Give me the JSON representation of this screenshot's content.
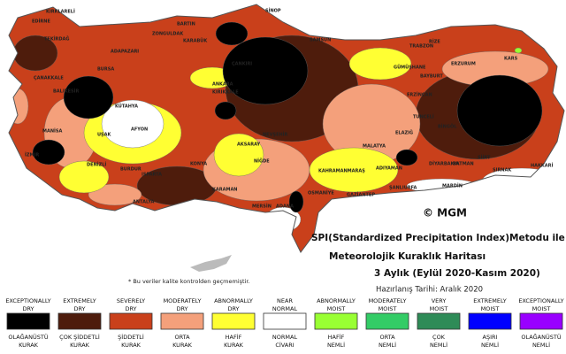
{
  "title": {
    "line1": "SPI(Standardized Precipitation Index)Metodu ile",
    "line2": "Meteorolojik Kuraklık Haritası",
    "line3": "3 Aylık (Eylül 2020-Kasım 2020)",
    "prepared": "Hazırlanış Tarihi: Aralık 2020"
  },
  "note": "* Bu veriler kalite kontrolden geçmemiştir.",
  "copyright": "© MGM",
  "cities": [
    "SİNOP",
    "BARTIN",
    "ZONGULDAK",
    "KARABÜK",
    "KIRKLARELİ",
    "EDİRNE",
    "TEKİRDAĞ",
    "ÇANAKKALE",
    "BALIKESİR",
    "ADAPAZARI",
    "BURSA",
    "ÇANKIRI",
    "ANKARA",
    "KIRIKKALE",
    "KÜTAHYA",
    "AFYON",
    "UŞAK",
    "MANİSA",
    "İZMİR",
    "DENİZLİ",
    "BURDUR",
    "ISPARTA",
    "KONYA",
    "ANTALYA",
    "KARAMAN",
    "AKSARAY",
    "NEVŞEHİR",
    "NİĞDE",
    "MERSİN",
    "ADANA",
    "KAHRAMANMARAŞ",
    "OSMANİYE",
    "GAZİANTEP",
    "ADIYAMAN",
    "ŞANLIURFA",
    "MALATYA",
    "ELAZIĞ",
    "TUNCELİ",
    "BİNGÖL",
    "DİYARBAKIR",
    "BATMAN",
    "MARDİN",
    "SİİRT",
    "ŞIRNAK",
    "HAKKARİ",
    "ERZİNCAN",
    "ERZURUM",
    "BAYBURT",
    "GÜMÜŞHANE",
    "TRABZON",
    "RİZE",
    "KARS",
    "SAMSUN"
  ],
  "legend": [
    {
      "en": [
        "EXCEPTIONALLY",
        "DRY"
      ],
      "tr": [
        "OLAĞANÜSTÜ",
        "KURAK"
      ],
      "color": "#000000"
    },
    {
      "en": [
        "EXTREMELY",
        "DRY"
      ],
      "tr": [
        "ÇOK ŞİDDETLİ",
        "KURAK"
      ],
      "color": "#4e1c0c"
    },
    {
      "en": [
        "SEVERELY",
        "DRY"
      ],
      "tr": [
        "ŞİDDETLİ",
        "KURAK"
      ],
      "color": "#c9401b"
    },
    {
      "en": [
        "MODERATELY",
        "DRY"
      ],
      "tr": [
        "ORTA",
        "KURAK"
      ],
      "color": "#f4a07b"
    },
    {
      "en": [
        "ABNORMALLY",
        "DRY"
      ],
      "tr": [
        "HAFİF",
        "KURAK"
      ],
      "color": "#ffff33"
    },
    {
      "en": [
        "NEAR",
        "NORMAL"
      ],
      "tr": [
        "NORMAL",
        "CİVARI"
      ],
      "color": "#ffffff"
    },
    {
      "en": [
        "ABNORMALLY",
        "MOIST"
      ],
      "tr": [
        "HAFİF",
        "NEMLİ"
      ],
      "color": "#99ff33"
    },
    {
      "en": [
        "MODERATELY",
        "MOIST"
      ],
      "tr": [
        "ORTA",
        "NEMLİ"
      ],
      "color": "#33cc66"
    },
    {
      "en": [
        "VERY",
        "MOIST"
      ],
      "tr": [
        "ÇOK",
        "NEMLİ"
      ],
      "color": "#2e8b57"
    },
    {
      "en": [
        "EXTREMELY",
        "MOIST"
      ],
      "tr": [
        "AŞIRI",
        "NEMLİ"
      ],
      "color": "#0000ff"
    },
    {
      "en": [
        "EXCEPTIONALLY",
        "MOIST"
      ],
      "tr": [
        "OLAĞANÜSTÜ",
        "NEMLİ"
      ],
      "color": "#9900ff"
    }
  ]
}
